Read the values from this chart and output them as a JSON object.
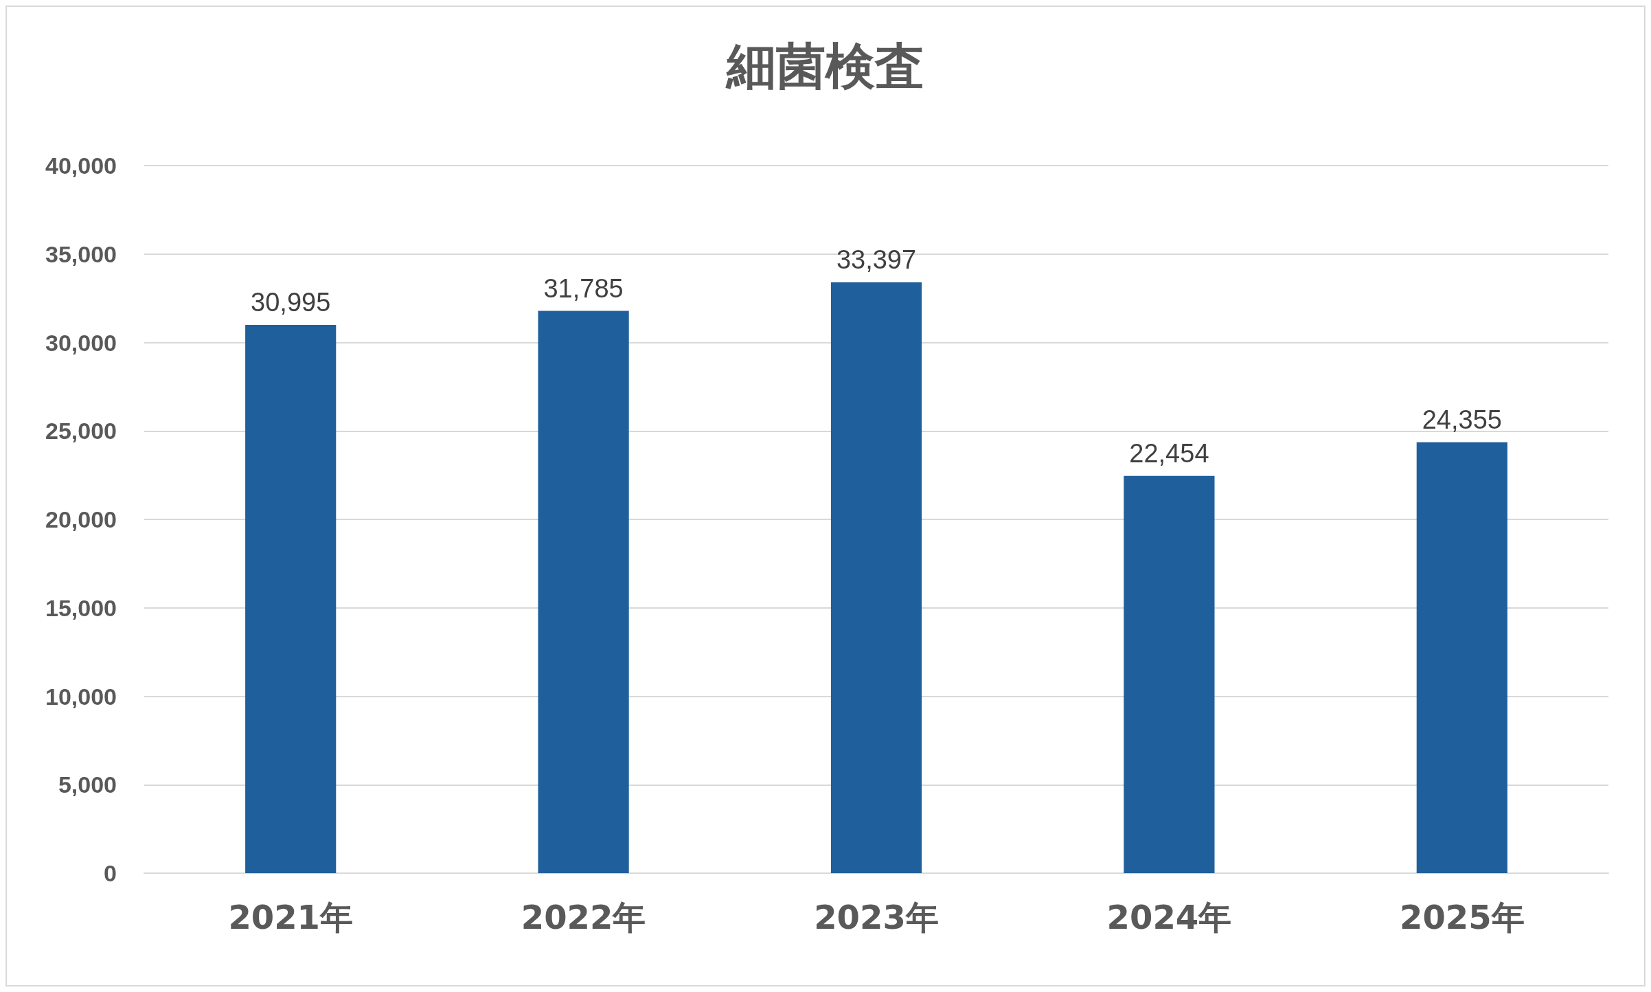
{
  "chart_data": {
    "type": "bar",
    "title": "細菌検査",
    "categories": [
      "2021年",
      "2022年",
      "2023年",
      "2024年",
      "2025年"
    ],
    "values": [
      30995,
      31785,
      33397,
      22454,
      24355
    ],
    "value_labels": [
      "30,995",
      "31,785",
      "33,397",
      "22,454",
      "24,355"
    ],
    "color": "#1f5f9b",
    "ylim": [
      0,
      40000
    ],
    "yticks": [
      0,
      {
        "value": 5000,
        "label": "5,000"
      },
      {
        "value": 10000,
        "label": "10,000"
      },
      {
        "value": 15000,
        "label": "15,000"
      },
      {
        "value": 20000,
        "label": "20,000"
      },
      {
        "value": 25000,
        "label": "25,000"
      },
      {
        "value": 30000,
        "label": "30,000"
      },
      {
        "value": 35000,
        "label": "35,000"
      },
      {
        "value": 40000,
        "label": "40,000"
      }
    ],
    "grid": "y"
  }
}
